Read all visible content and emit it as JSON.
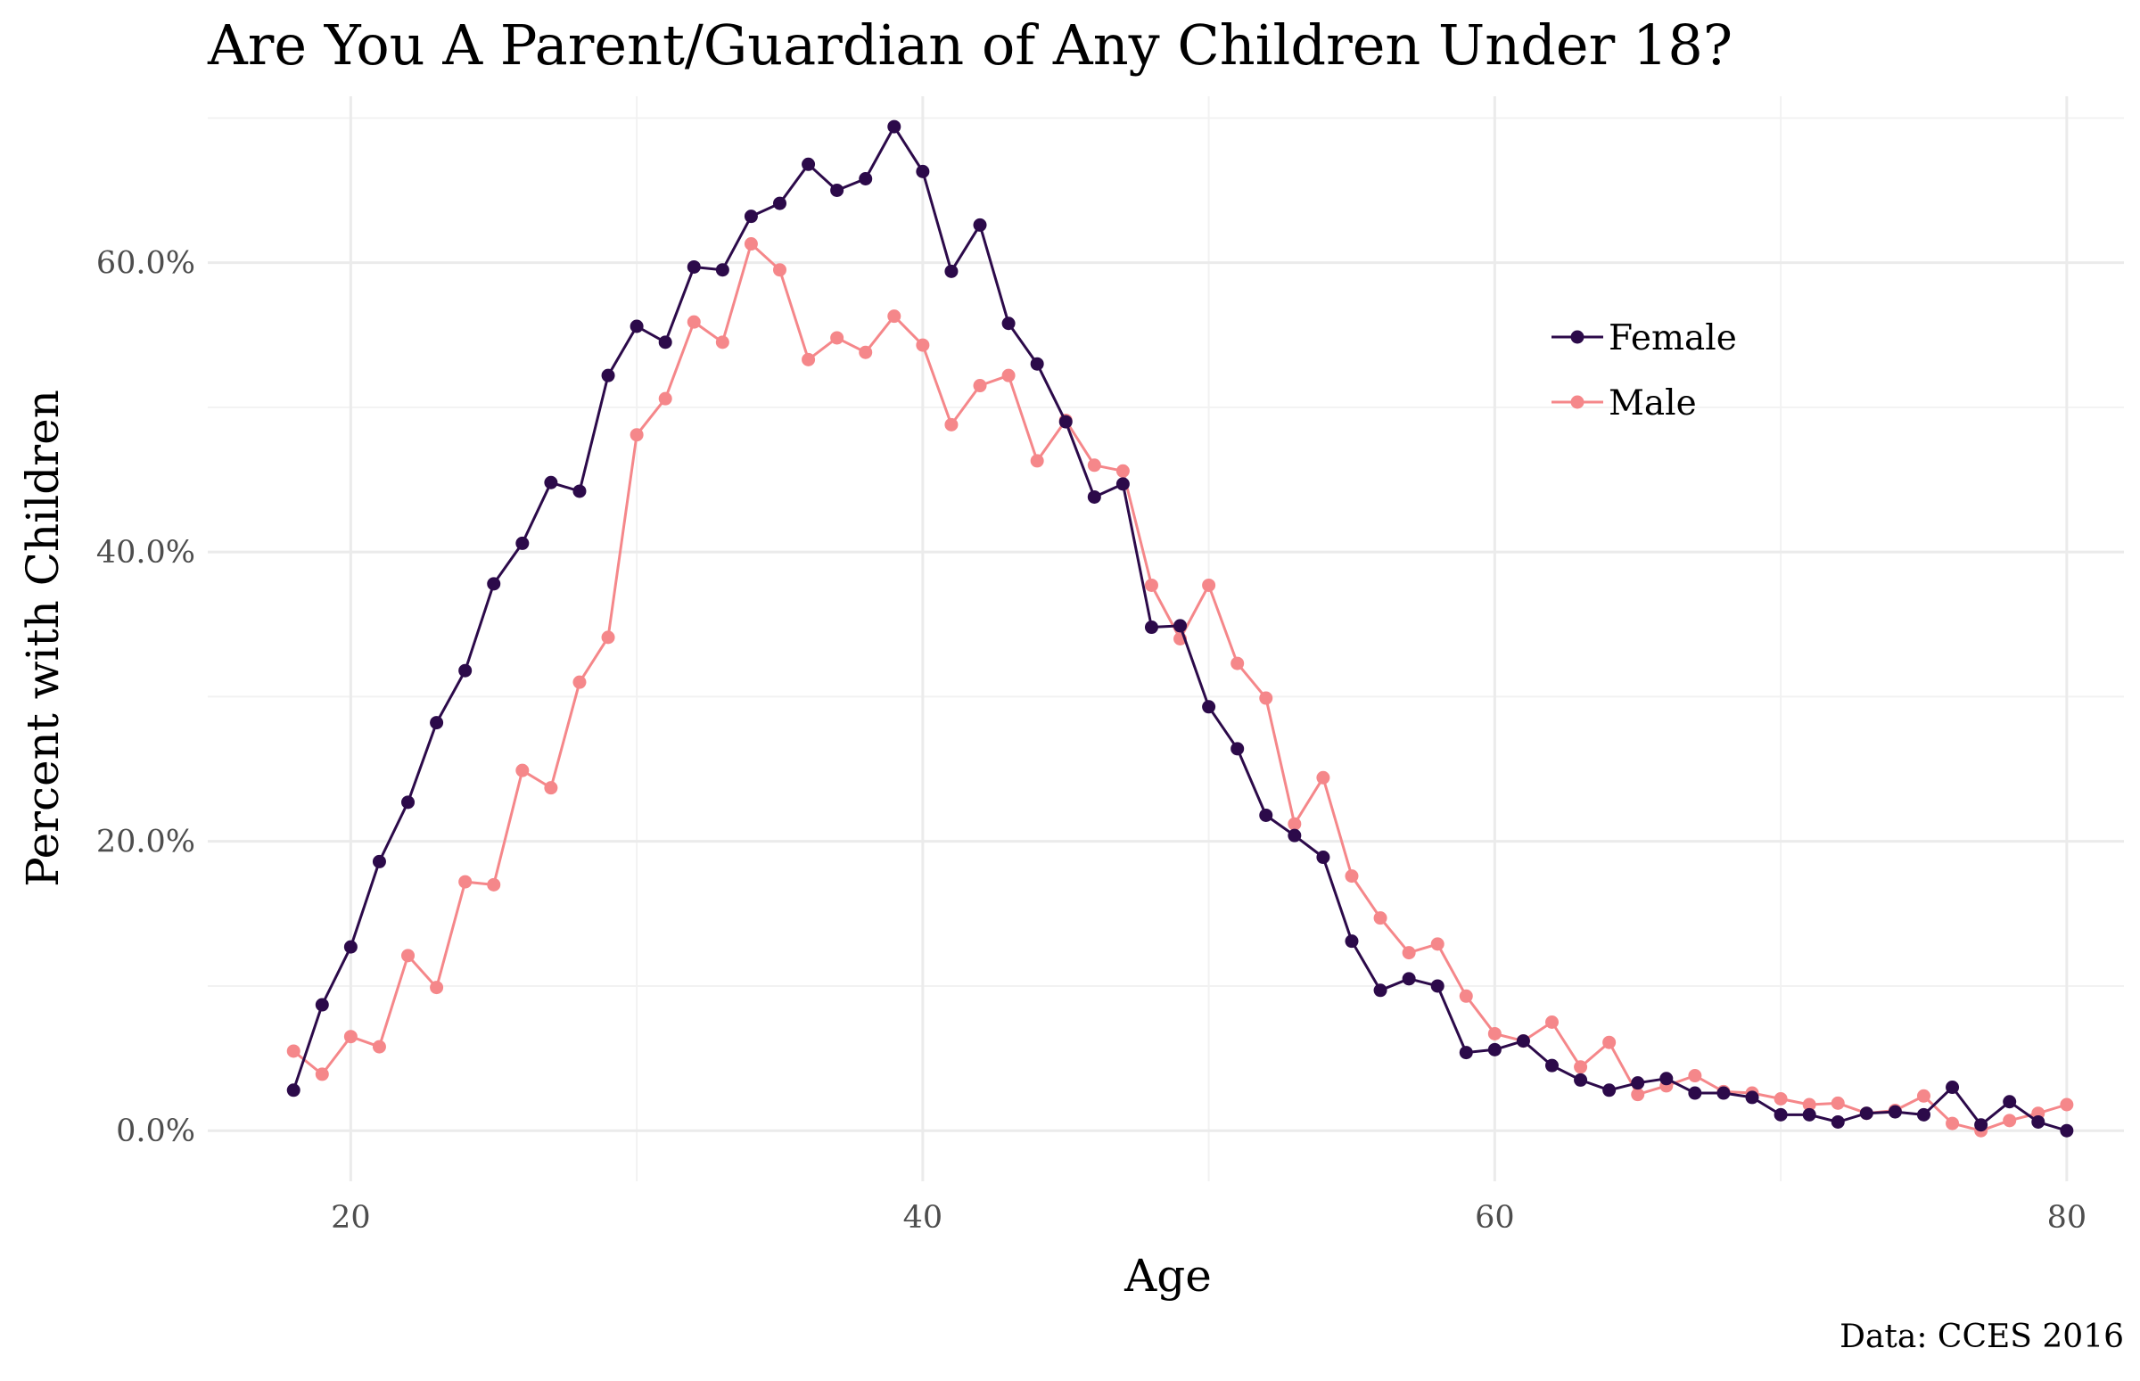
{
  "chart_data": {
    "type": "line",
    "title": "Are You A Parent/Guardian of Any Children Under 18?",
    "xlabel": "Age",
    "ylabel": "Percent with Children",
    "caption": "Data: CCES 2016",
    "xlim": [
      15,
      82
    ],
    "ylim": [
      -0.035,
      0.715
    ],
    "x_ticks": [
      20,
      40,
      60,
      80
    ],
    "x_tick_labels": [
      "20",
      "40",
      "60",
      "80"
    ],
    "y_ticks": [
      0,
      0.2,
      0.4,
      0.6
    ],
    "y_tick_labels": [
      "0.0%",
      "20.0%",
      "40.0%",
      "60.0%"
    ],
    "grid": true,
    "legend_position": "top-right",
    "x": [
      18,
      19,
      20,
      21,
      22,
      23,
      24,
      25,
      26,
      27,
      28,
      29,
      30,
      31,
      32,
      33,
      34,
      35,
      36,
      37,
      38,
      39,
      40,
      41,
      42,
      43,
      44,
      45,
      46,
      47,
      48,
      49,
      50,
      51,
      52,
      53,
      54,
      55,
      56,
      57,
      58,
      59,
      60,
      61,
      62,
      63,
      64,
      65,
      66,
      67,
      68,
      69,
      70,
      71,
      72,
      73,
      74,
      75,
      76,
      77,
      78,
      79,
      80
    ],
    "series": [
      {
        "name": "Female",
        "color": "#2c0a4a",
        "values": [
          0.028,
          0.087,
          0.127,
          0.186,
          0.227,
          0.282,
          0.318,
          0.378,
          0.406,
          0.448,
          0.442,
          0.522,
          0.556,
          0.545,
          0.597,
          0.595,
          0.632,
          0.641,
          0.668,
          0.65,
          0.658,
          0.694,
          0.663,
          0.594,
          0.626,
          0.558,
          0.53,
          0.49,
          0.438,
          0.447,
          0.348,
          0.349,
          0.293,
          0.264,
          0.218,
          0.204,
          0.189,
          0.131,
          0.097,
          0.105,
          0.1,
          0.054,
          0.056,
          0.062,
          0.045,
          0.035,
          0.028,
          0.033,
          0.036,
          0.026,
          0.026,
          0.023,
          0.011,
          0.011,
          0.006,
          0.012,
          0.013,
          0.011,
          0.03,
          0.004,
          0.02,
          0.006,
          0.0
        ]
      },
      {
        "name": "Male",
        "color": "#f5878a",
        "values": [
          0.055,
          0.039,
          0.065,
          0.058,
          0.121,
          0.099,
          0.172,
          0.17,
          0.249,
          0.237,
          0.31,
          0.341,
          0.481,
          0.506,
          0.559,
          0.545,
          0.613,
          0.595,
          0.533,
          0.548,
          0.538,
          0.563,
          0.543,
          0.488,
          0.515,
          0.522,
          0.463,
          0.491,
          0.46,
          0.456,
          0.377,
          0.34,
          0.377,
          0.323,
          0.299,
          0.212,
          0.244,
          0.176,
          0.147,
          0.123,
          0.129,
          0.093,
          0.067,
          0.062,
          0.075,
          0.044,
          0.061,
          0.025,
          0.031,
          0.038,
          0.027,
          0.026,
          0.022,
          0.018,
          0.019,
          0.012,
          0.014,
          0.024,
          0.005,
          0.0,
          0.007,
          0.012,
          0.018
        ]
      }
    ]
  }
}
